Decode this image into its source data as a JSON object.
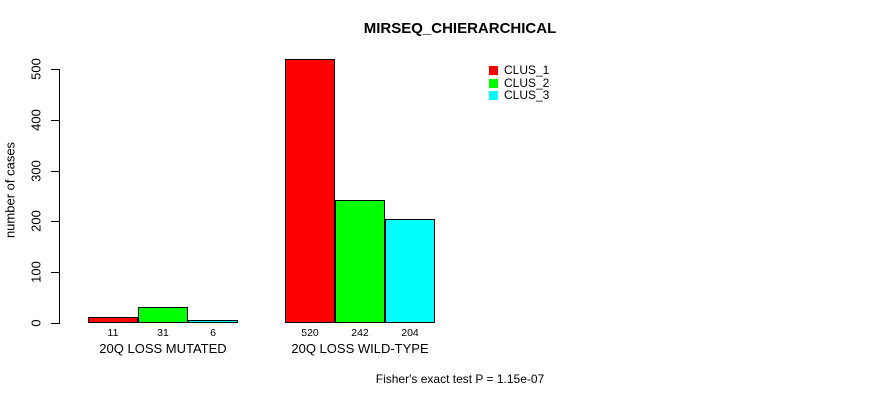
{
  "chart_data": {
    "type": "bar",
    "title": "MIRSEQ_CHIERARCHICAL",
    "ylabel": "number of cases",
    "xlabel": "",
    "ylim": [
      0,
      500
    ],
    "yticks": [
      0,
      100,
      200,
      300,
      400,
      500
    ],
    "grid": false,
    "legend_position": "top-right",
    "categories": [
      "20Q LOSS MUTATED",
      "20Q LOSS WILD-TYPE"
    ],
    "series": [
      {
        "name": "CLUS_1",
        "color": "#ff0000",
        "values": [
          11,
          520
        ]
      },
      {
        "name": "CLUS_2",
        "color": "#00ff00",
        "values": [
          31,
          242
        ]
      },
      {
        "name": "CLUS_3",
        "color": "#00ffff",
        "values": [
          6,
          204
        ]
      }
    ],
    "bar_border_color": "#000000",
    "background_color": "#ffffff",
    "footnote": "Fisher's exact test P = 1.15e-07"
  }
}
